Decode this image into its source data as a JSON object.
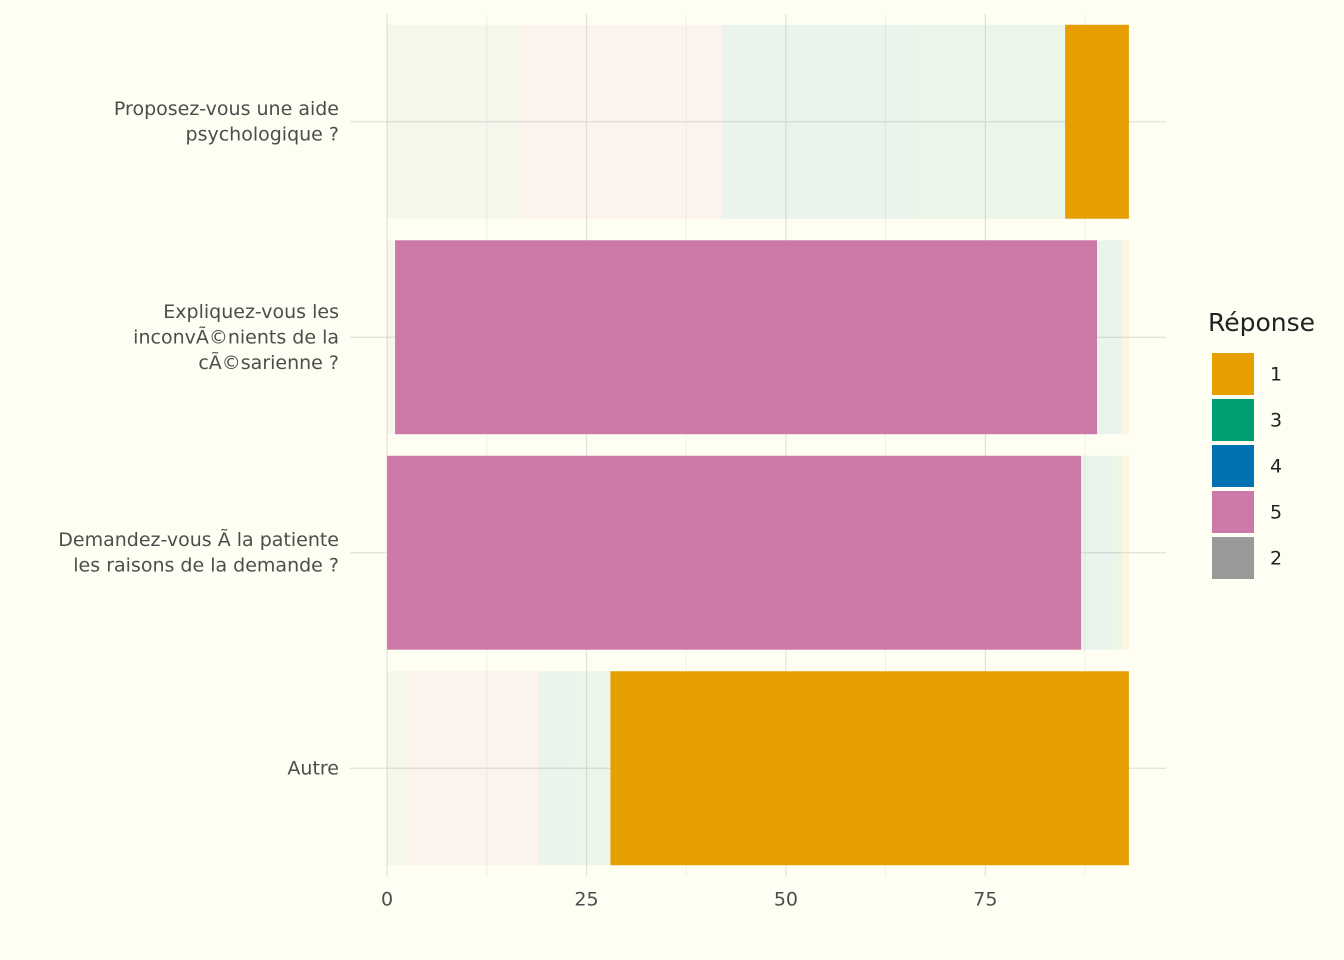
{
  "chart_data": {
    "type": "stacked_barh",
    "categories": [
      "Proposez-vous une aide\npsychologique ?",
      "Expliquez-vous les\ninconvÃ©nients de la\ncÃ©sarienne ?",
      "Demandez-vous Ã  la patiente\nles raisons de la demande ?",
      "Autre"
    ],
    "series": [
      {
        "name": "1",
        "color": "#E69F00",
        "values": [
          8,
          1,
          1,
          65
        ]
      },
      {
        "name": "3",
        "color": "#009E73",
        "values": [
          19,
          0,
          1,
          5
        ]
      },
      {
        "name": "4",
        "color": "#0072B2",
        "values": [
          24,
          3,
          4,
          4
        ]
      },
      {
        "name": "5",
        "color": "#CC79A7",
        "values": [
          25,
          88,
          87,
          16
        ]
      },
      {
        "name": "2",
        "color": "#999999",
        "values": [
          17,
          1,
          0,
          3
        ]
      }
    ],
    "stack_order": [
      "2",
      "5",
      "4",
      "3",
      "1"
    ],
    "highlight": [
      "1",
      "5",
      "5",
      "1"
    ],
    "faded_alpha": 0.08,
    "legend_title": "Réponse",
    "legend_position": "right",
    "xlim": [
      -4.65,
      97.65
    ],
    "xticks": [
      0,
      25,
      50,
      75
    ],
    "minor_xticks": [
      12.5,
      37.5,
      62.5,
      87.5
    ],
    "grid": true
  }
}
